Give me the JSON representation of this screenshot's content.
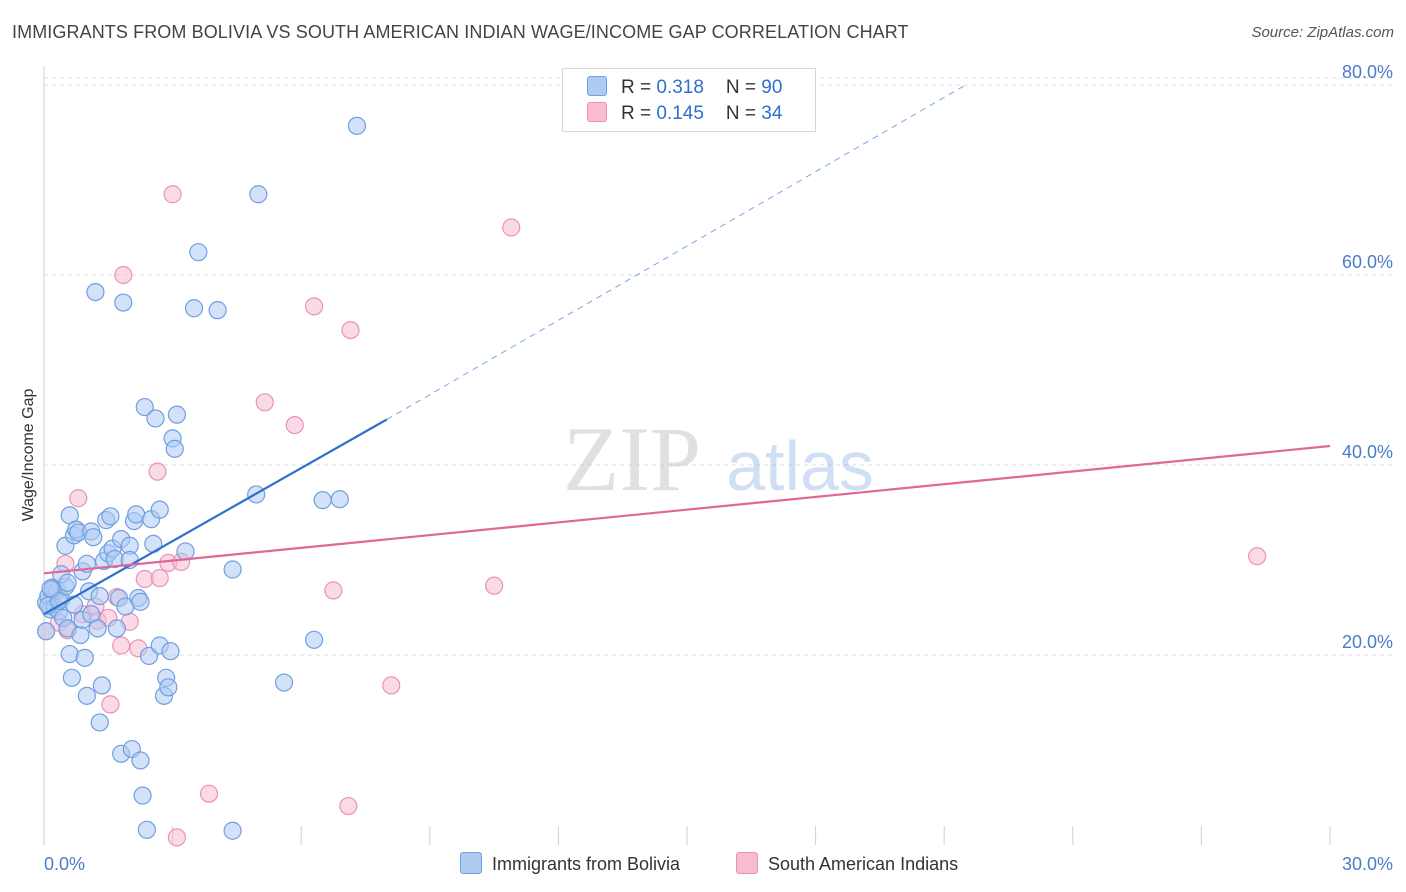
{
  "title": "IMMIGRANTS FROM BOLIVIA VS SOUTH AMERICAN INDIAN WAGE/INCOME GAP CORRELATION CHART",
  "source": "Source: ZipAtlas.com",
  "watermark": {
    "zip": "ZIP",
    "atlas": "atlas"
  },
  "colors": {
    "blue": "#2f6fce",
    "blue_fill": "#aecbf2",
    "pink": "#e0679a",
    "pink_fill": "#f6bcd2",
    "grid": "#dddddd",
    "tick_label": "#4a7cc9"
  },
  "legend": {
    "rows": [
      {
        "r_label": "R = ",
        "r_value": "0.318",
        "n_label": "N = ",
        "n_value": "90"
      },
      {
        "r_label": "R = ",
        "r_value": "0.145",
        "n_label": "N = ",
        "n_value": "34"
      }
    ]
  },
  "bottom_legend": {
    "items": [
      {
        "label": "Immigrants from Bolivia"
      },
      {
        "label": "South American Indians"
      }
    ]
  },
  "chart_data": {
    "type": "scatter",
    "title": "IMMIGRANTS FROM BOLIVIA VS SOUTH AMERICAN INDIAN WAGE/INCOME GAP CORRELATION CHART",
    "xlabel": "",
    "ylabel": "Wage/Income Gap",
    "xlim": [
      0,
      30
    ],
    "ylim": [
      0,
      82
    ],
    "x_tick_labels": [
      "0.0%",
      "30.0%"
    ],
    "y_ticks": [
      20,
      40,
      60,
      80
    ],
    "y_tick_labels": [
      "20.0%",
      "40.0%",
      "60.0%",
      "80.0%"
    ],
    "grid": true,
    "legend_position": "top-center",
    "series": [
      {
        "name": "Immigrants from Bolivia",
        "color": "#2f6fce",
        "trend": {
          "x": [
            0,
            8.0
          ],
          "y": [
            24.3,
            44.8
          ],
          "dashed_extension": {
            "x": [
              8.0,
              21.5
            ],
            "y": [
              44.8,
              80
            ]
          }
        },
        "points": [
          [
            0.05,
            25.5
          ],
          [
            0.1,
            26.2
          ],
          [
            0.15,
            24.8
          ],
          [
            0.2,
            27.1
          ],
          [
            0.25,
            25.0
          ],
          [
            0.3,
            26.8
          ],
          [
            0.35,
            24.6
          ],
          [
            0.4,
            25.9
          ],
          [
            0.45,
            23.9
          ],
          [
            0.5,
            31.5
          ],
          [
            0.5,
            27.2
          ],
          [
            0.55,
            22.8
          ],
          [
            0.6,
            20.1
          ],
          [
            0.6,
            34.7
          ],
          [
            0.65,
            17.6
          ],
          [
            0.7,
            32.6
          ],
          [
            0.75,
            33.2
          ],
          [
            0.8,
            32.9
          ],
          [
            0.85,
            22.1
          ],
          [
            0.9,
            23.7
          ],
          [
            0.9,
            28.8
          ],
          [
            0.95,
            19.7
          ],
          [
            1.0,
            15.7
          ],
          [
            1.05,
            26.7
          ],
          [
            1.1,
            33.0
          ],
          [
            1.1,
            24.3
          ],
          [
            1.15,
            32.4
          ],
          [
            1.2,
            58.2
          ],
          [
            1.25,
            22.8
          ],
          [
            1.3,
            26.2
          ],
          [
            1.3,
            12.9
          ],
          [
            1.35,
            16.8
          ],
          [
            1.4,
            29.9
          ],
          [
            1.45,
            34.2
          ],
          [
            1.5,
            30.7
          ],
          [
            1.55,
            34.6
          ],
          [
            1.6,
            31.2
          ],
          [
            1.65,
            30.1
          ],
          [
            1.7,
            22.8
          ],
          [
            1.75,
            26.0
          ],
          [
            1.8,
            32.2
          ],
          [
            1.8,
            9.6
          ],
          [
            1.85,
            57.1
          ],
          [
            1.9,
            25.1
          ],
          [
            2.0,
            31.5
          ],
          [
            2.0,
            30.0
          ],
          [
            2.05,
            10.1
          ],
          [
            2.1,
            34.1
          ],
          [
            2.15,
            34.8
          ],
          [
            2.2,
            26.0
          ],
          [
            2.25,
            25.6
          ],
          [
            2.25,
            8.9
          ],
          [
            2.3,
            5.2
          ],
          [
            2.35,
            46.1
          ],
          [
            2.4,
            1.6
          ],
          [
            2.45,
            19.9
          ],
          [
            2.5,
            34.3
          ],
          [
            2.55,
            31.7
          ],
          [
            2.6,
            44.9
          ],
          [
            2.7,
            35.3
          ],
          [
            2.7,
            21.0
          ],
          [
            2.8,
            15.7
          ],
          [
            2.85,
            17.6
          ],
          [
            2.9,
            16.6
          ],
          [
            2.95,
            20.4
          ],
          [
            3.0,
            42.8
          ],
          [
            3.05,
            41.7
          ],
          [
            3.1,
            45.3
          ],
          [
            3.3,
            30.9
          ],
          [
            3.5,
            56.5
          ],
          [
            3.6,
            62.4
          ],
          [
            4.05,
            56.3
          ],
          [
            4.4,
            29.0
          ],
          [
            4.4,
            1.5
          ],
          [
            4.95,
            36.9
          ],
          [
            5.0,
            68.5
          ],
          [
            5.6,
            17.1
          ],
          [
            6.3,
            21.6
          ],
          [
            6.5,
            36.3
          ],
          [
            6.9,
            36.4
          ],
          [
            7.3,
            75.7
          ],
          [
            0.05,
            22.5
          ],
          [
            0.1,
            25.2
          ],
          [
            0.2,
            26.9
          ],
          [
            0.35,
            25.7
          ],
          [
            0.4,
            28.5
          ],
          [
            0.55,
            27.6
          ],
          [
            0.15,
            27.0
          ],
          [
            1.0,
            29.6
          ],
          [
            0.7,
            25.3
          ]
        ]
      },
      {
        "name": "South American Indians",
        "color": "#e0679a",
        "trend": {
          "x": [
            0,
            30
          ],
          "y": [
            28.6,
            42.0
          ]
        },
        "points": [
          [
            0.05,
            22.5
          ],
          [
            0.2,
            26.3
          ],
          [
            0.35,
            23.4
          ],
          [
            0.5,
            29.6
          ],
          [
            0.55,
            22.6
          ],
          [
            0.8,
            36.5
          ],
          [
            0.9,
            24.3
          ],
          [
            1.2,
            25.1
          ],
          [
            1.25,
            23.6
          ],
          [
            1.5,
            23.9
          ],
          [
            1.55,
            14.8
          ],
          [
            1.7,
            26.1
          ],
          [
            1.8,
            21.0
          ],
          [
            1.85,
            60.0
          ],
          [
            2.0,
            23.5
          ],
          [
            2.2,
            20.7
          ],
          [
            2.35,
            28.0
          ],
          [
            2.65,
            39.3
          ],
          [
            2.7,
            28.1
          ],
          [
            2.9,
            29.7
          ],
          [
            3.0,
            68.5
          ],
          [
            3.1,
            0.8
          ],
          [
            3.2,
            29.8
          ],
          [
            3.85,
            5.4
          ],
          [
            5.15,
            46.6
          ],
          [
            5.85,
            44.2
          ],
          [
            6.3,
            56.7
          ],
          [
            6.75,
            26.8
          ],
          [
            7.1,
            4.1
          ],
          [
            7.15,
            54.2
          ],
          [
            8.1,
            16.8
          ],
          [
            10.5,
            27.3
          ],
          [
            10.9,
            65.0
          ],
          [
            28.3,
            30.4
          ]
        ]
      }
    ]
  }
}
